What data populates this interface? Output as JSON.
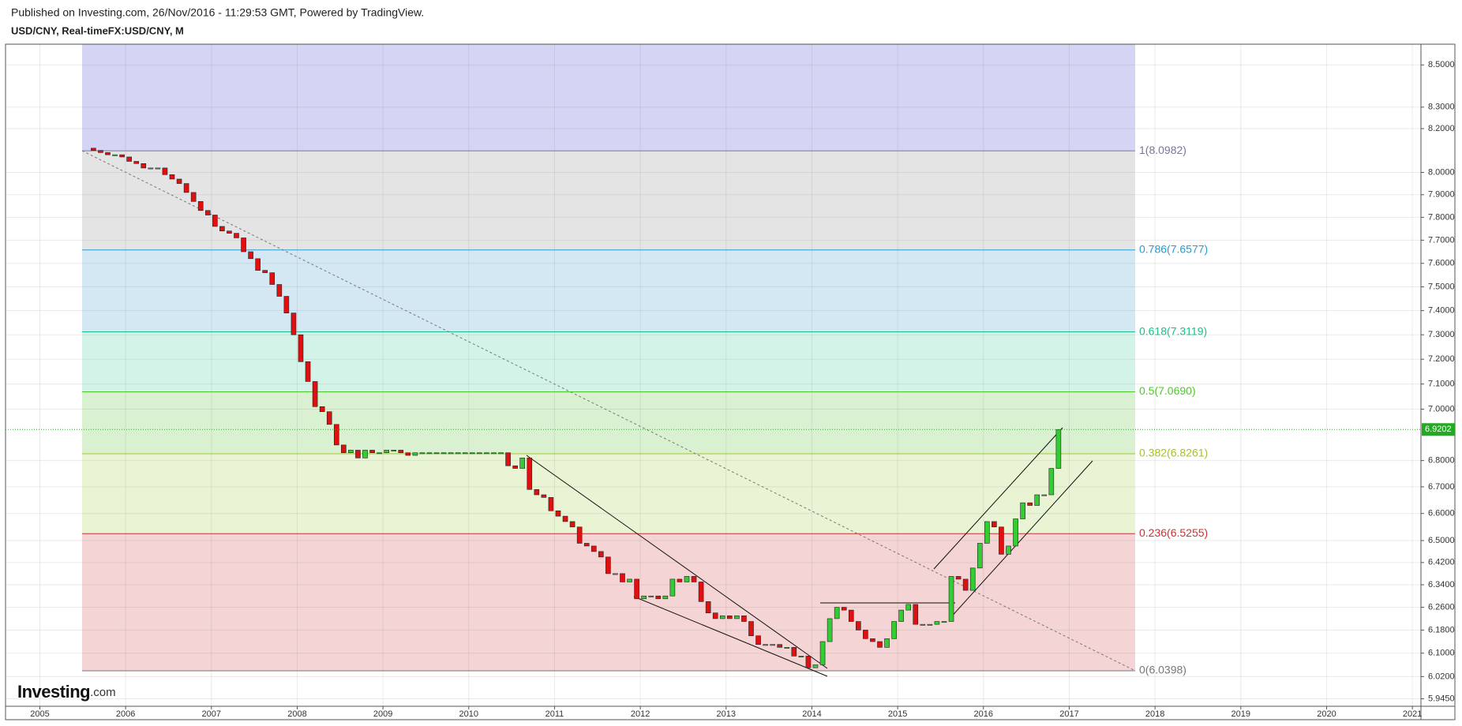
{
  "header": {
    "published": "Published on Investing.com, 26/Nov/2016 - 11:29:53 GMT, Powered by TradingView.",
    "symbol": "USD/CNY, Real-timeFX:USD/CNY, M"
  },
  "chart_data": {
    "type": "candlestick",
    "x": [
      "2005-08",
      "2005-09",
      "2005-10",
      "2005-11",
      "2005-12",
      "2006-01",
      "2006-02",
      "2006-03",
      "2006-04",
      "2006-05",
      "2006-06",
      "2006-07",
      "2006-08",
      "2006-09",
      "2006-10",
      "2006-11",
      "2006-12",
      "2007-01",
      "2007-02",
      "2007-03",
      "2007-04",
      "2007-05",
      "2007-06",
      "2007-07",
      "2007-08",
      "2007-09",
      "2007-10",
      "2007-11",
      "2007-12",
      "2008-01",
      "2008-02",
      "2008-03",
      "2008-04",
      "2008-05",
      "2008-06",
      "2008-07",
      "2008-08",
      "2008-09",
      "2008-10",
      "2008-11",
      "2008-12",
      "2009-01",
      "2009-02",
      "2009-03",
      "2009-04",
      "2009-05",
      "2009-06",
      "2009-07",
      "2009-08",
      "2009-09",
      "2009-10",
      "2009-11",
      "2009-12",
      "2010-01",
      "2010-02",
      "2010-03",
      "2010-04",
      "2010-05",
      "2010-06",
      "2010-07",
      "2010-08",
      "2010-09",
      "2010-10",
      "2010-11",
      "2010-12",
      "2011-01",
      "2011-02",
      "2011-03",
      "2011-04",
      "2011-05",
      "2011-06",
      "2011-07",
      "2011-08",
      "2011-09",
      "2011-10",
      "2011-11",
      "2011-12",
      "2012-01",
      "2012-02",
      "2012-03",
      "2012-04",
      "2012-05",
      "2012-06",
      "2012-07",
      "2012-08",
      "2012-09",
      "2012-10",
      "2012-11",
      "2012-12",
      "2013-01",
      "2013-02",
      "2013-03",
      "2013-04",
      "2013-05",
      "2013-06",
      "2013-07",
      "2013-08",
      "2013-09",
      "2013-10",
      "2013-11",
      "2013-12",
      "2014-01",
      "2014-02",
      "2014-03",
      "2014-04",
      "2014-05",
      "2014-06",
      "2014-07",
      "2014-08",
      "2014-09",
      "2014-10",
      "2014-11",
      "2014-12",
      "2015-01",
      "2015-02",
      "2015-03",
      "2015-04",
      "2015-05",
      "2015-06",
      "2015-07",
      "2015-08",
      "2015-09",
      "2015-10",
      "2015-11",
      "2015-12",
      "2016-01",
      "2016-02",
      "2016-03",
      "2016-04",
      "2016-05",
      "2016-06",
      "2016-07",
      "2016-08",
      "2016-09",
      "2016-10",
      "2016-11"
    ],
    "open": [
      8.11,
      8.1,
      8.09,
      8.08,
      8.08,
      8.07,
      8.05,
      8.04,
      8.02,
      8.02,
      8.02,
      7.99,
      7.97,
      7.95,
      7.91,
      7.87,
      7.83,
      7.81,
      7.76,
      7.74,
      7.73,
      7.71,
      7.65,
      7.62,
      7.57,
      7.56,
      7.51,
      7.46,
      7.39,
      7.3,
      7.19,
      7.11,
      7.01,
      6.99,
      6.94,
      6.86,
      6.83,
      6.84,
      6.81,
      6.84,
      6.83,
      6.83,
      6.84,
      6.84,
      6.83,
      6.82,
      6.83,
      6.83,
      6.83,
      6.83,
      6.83,
      6.83,
      6.83,
      6.83,
      6.83,
      6.83,
      6.83,
      6.83,
      6.83,
      6.78,
      6.77,
      6.81,
      6.69,
      6.67,
      6.66,
      6.61,
      6.59,
      6.57,
      6.55,
      6.49,
      6.48,
      6.46,
      6.44,
      6.38,
      6.38,
      6.35,
      6.36,
      6.29,
      6.3,
      6.3,
      6.29,
      6.3,
      6.36,
      6.35,
      6.37,
      6.35,
      6.28,
      6.24,
      6.22,
      6.23,
      6.22,
      6.23,
      6.21,
      6.16,
      6.13,
      6.13,
      6.13,
      6.12,
      6.12,
      6.09,
      6.09,
      6.05,
      6.06,
      6.14,
      6.22,
      6.26,
      6.25,
      6.21,
      6.18,
      6.15,
      6.14,
      6.12,
      6.15,
      6.21,
      6.25,
      6.27,
      6.2,
      6.2,
      6.2,
      6.21,
      6.21,
      6.37,
      6.36,
      6.32,
      6.4,
      6.49,
      6.57,
      6.55,
      6.45,
      6.48,
      6.58,
      6.64,
      6.63,
      6.67,
      6.67,
      6.77
    ],
    "close": [
      8.1,
      8.09,
      8.08,
      8.08,
      8.07,
      8.05,
      8.04,
      8.02,
      8.02,
      8.02,
      7.99,
      7.97,
      7.95,
      7.91,
      7.87,
      7.83,
      7.81,
      7.76,
      7.74,
      7.73,
      7.71,
      7.65,
      7.62,
      7.57,
      7.56,
      7.51,
      7.46,
      7.39,
      7.3,
      7.19,
      7.11,
      7.01,
      6.99,
      6.94,
      6.86,
      6.83,
      6.84,
      6.81,
      6.84,
      6.83,
      6.83,
      6.84,
      6.84,
      6.83,
      6.82,
      6.83,
      6.83,
      6.83,
      6.83,
      6.83,
      6.83,
      6.83,
      6.83,
      6.83,
      6.83,
      6.83,
      6.83,
      6.83,
      6.78,
      6.77,
      6.81,
      6.69,
      6.67,
      6.66,
      6.61,
      6.59,
      6.57,
      6.55,
      6.49,
      6.48,
      6.46,
      6.44,
      6.38,
      6.38,
      6.35,
      6.36,
      6.29,
      6.3,
      6.3,
      6.29,
      6.3,
      6.36,
      6.35,
      6.37,
      6.35,
      6.28,
      6.24,
      6.22,
      6.23,
      6.22,
      6.23,
      6.21,
      6.16,
      6.13,
      6.13,
      6.13,
      6.12,
      6.12,
      6.09,
      6.09,
      6.05,
      6.06,
      6.14,
      6.22,
      6.26,
      6.25,
      6.21,
      6.18,
      6.15,
      6.14,
      6.12,
      6.15,
      6.21,
      6.25,
      6.27,
      6.2,
      6.2,
      6.2,
      6.21,
      6.21,
      6.37,
      6.36,
      6.32,
      6.4,
      6.49,
      6.57,
      6.55,
      6.45,
      6.48,
      6.58,
      6.64,
      6.63,
      6.67,
      6.67,
      6.77,
      6.9202
    ],
    "colors": {
      "up": "#33cc33",
      "down": "#e01010",
      "last_price": "#22aa22"
    },
    "xlim": [
      2004.6,
      2021.1
    ],
    "xticks": [
      2005,
      2006,
      2007,
      2008,
      2009,
      2010,
      2011,
      2012,
      2013,
      2014,
      2015,
      2016,
      2017,
      2018,
      2019,
      2020,
      2021
    ],
    "ylim": [
      5.92,
      8.6
    ],
    "log_scale": true,
    "grid": true,
    "yticks": [
      {
        "value": 5.945,
        "label": "5.9450"
      },
      {
        "value": 6.02,
        "label": "6.0200"
      },
      {
        "value": 6.1,
        "label": "6.1000"
      },
      {
        "value": 6.18,
        "label": "6.1800"
      },
      {
        "value": 6.26,
        "label": "6.2600"
      },
      {
        "value": 6.34,
        "label": "6.3400"
      },
      {
        "value": 6.42,
        "label": "6.4200"
      },
      {
        "value": 6.5,
        "label": "6.5000"
      },
      {
        "value": 6.6,
        "label": "6.6000"
      },
      {
        "value": 6.7,
        "label": "6.7000"
      },
      {
        "value": 6.8,
        "label": "6.8000"
      },
      {
        "value": 7,
        "label": "7.0000"
      },
      {
        "value": 7.1,
        "label": "7.1000"
      },
      {
        "value": 7.2,
        "label": "7.2000"
      },
      {
        "value": 7.3,
        "label": "7.3000"
      },
      {
        "value": 7.4,
        "label": "7.4000"
      },
      {
        "value": 7.5,
        "label": "7.5000"
      },
      {
        "value": 7.6,
        "label": "7.6000"
      },
      {
        "value": 7.7,
        "label": "7.7000"
      },
      {
        "value": 7.8,
        "label": "7.8000"
      },
      {
        "value": 7.9,
        "label": "7.9000"
      },
      {
        "value": 8,
        "label": "8.0000"
      },
      {
        "value": 8.2,
        "label": "8.2000"
      },
      {
        "value": 8.3,
        "label": "8.3000"
      },
      {
        "value": 8.5,
        "label": "8.5000"
      }
    ],
    "fibonacci": [
      {
        "value": 8.0982,
        "label": "1(8.0982)",
        "color": "#777799",
        "fill": "#e4e4e4"
      },
      {
        "value": 7.6577,
        "label": "0.786(7.6577)",
        "color": "#2a9bd0",
        "fill": "#d4e8f4"
      },
      {
        "value": 7.3119,
        "label": "0.618(7.3119)",
        "color": "#1bbf8a",
        "fill": "#d3f3e9"
      },
      {
        "value": 7.069,
        "label": "0.5(7.0690)",
        "color": "#4ec82c",
        "fill": "#daf1d1"
      },
      {
        "value": 6.8261,
        "label": "0.382(6.8261)",
        "color": "#a6c228",
        "fill": "#e9f4d5"
      },
      {
        "value": 6.5255,
        "label": "0.236(6.5255)",
        "color": "#c83434",
        "fill": "#f4d4d4"
      },
      {
        "value": 6.0398,
        "label": "0(6.0398)",
        "color": "#777777"
      }
    ],
    "fib_top_fill": "#d4d4f4",
    "logo": {
      "name": "Investing",
      "suffix": ".com"
    }
  }
}
